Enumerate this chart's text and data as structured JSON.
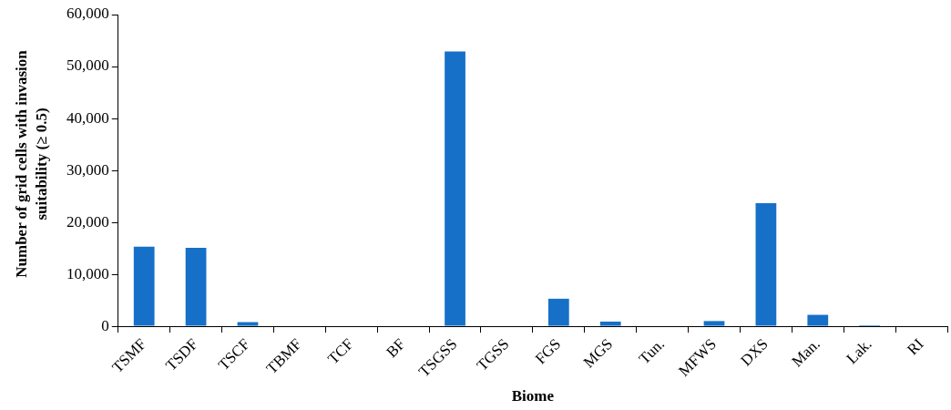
{
  "chart_data": {
    "type": "bar",
    "xlabel": "Biome",
    "ylabel": "Number of grid cells with invasion suitability (≥ 0.5)",
    "categories": [
      "TSMF",
      "TSDF",
      "TSCF",
      "TBMF",
      "TCF",
      "BF",
      "TSGSS",
      "TGSS",
      "FGS",
      "MGS",
      "Tun.",
      "MFWS",
      "DXS",
      "Man.",
      "Lak.",
      "RI"
    ],
    "values": [
      15300,
      15100,
      800,
      0,
      0,
      0,
      52900,
      0,
      5300,
      900,
      0,
      1000,
      23700,
      2200,
      200,
      0
    ],
    "color": "#1670c8",
    "ylim": [
      0,
      60000
    ],
    "yticks": [
      {
        "value": 0,
        "label": "0"
      },
      {
        "value": 10000,
        "label": "10,000"
      },
      {
        "value": 20000,
        "label": "20,000"
      },
      {
        "value": 30000,
        "label": "30,000"
      },
      {
        "value": 40000,
        "label": "40,000"
      },
      {
        "value": 50000,
        "label": "50,000"
      },
      {
        "value": 60000,
        "label": "60,000"
      }
    ],
    "grid": false,
    "legend": false
  }
}
